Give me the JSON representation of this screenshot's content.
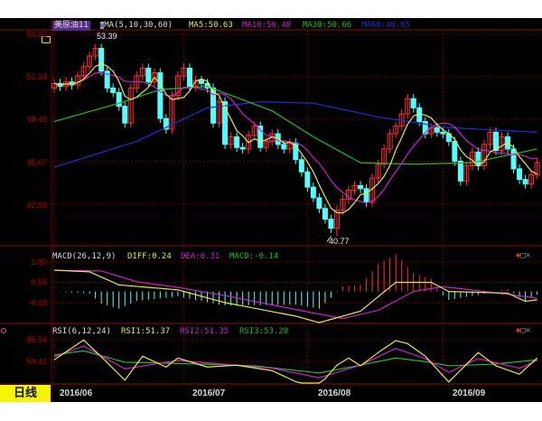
{
  "header": {
    "symbol": "美原油11",
    "ma_params": "MA(5,10,30,60)",
    "ma5": "MA5:50.63",
    "ma10": "MA10:50.48",
    "ma30": "MA30:50.66",
    "ma60": "MA60:48.85"
  },
  "macd_header": {
    "params": "MACD(26,12,9)",
    "diff": "DIFF:0.24",
    "dea": "DEA:0.31",
    "macd": "MACD:-0.14"
  },
  "rsi_header": {
    "params": "RSI(6,12,24)",
    "rsi1": "RSI1:51.37",
    "rsi2": "RSI2:51.35",
    "rsi3": "RSI3:53.20"
  },
  "period_label": "日线",
  "colors": {
    "up": "#ff3030",
    "down": "#54ffff",
    "ma5": "#e8e84a",
    "ma10": "#d020d0",
    "ma30": "#20c020",
    "ma60": "#2030d0",
    "axis": "#c00000",
    "grid": "#700000"
  },
  "chart_data": [
    {
      "type": "candlestick",
      "pane": "price",
      "y_ticks": [
        "54.02",
        "51.24",
        "48.46",
        "45.67",
        "42.89"
      ],
      "ylim": [
        40.5,
        54.3
      ],
      "x_ticks": [
        "2016/06",
        "2016/07",
        "2016/08",
        "2016/09"
      ],
      "x_tick_index": [
        0,
        22,
        43,
        66
      ],
      "annotations": {
        "high": "53.39",
        "low": "40.77"
      },
      "open": [
        50.5,
        50.8,
        50.6,
        50.9,
        50.7,
        51.3,
        51.9,
        52.6,
        53.1,
        51.6,
        50.5,
        50.2,
        49.3,
        48.2,
        50.5,
        51.3,
        51.8,
        50.9,
        51.5,
        48.5,
        47.8,
        50.0,
        51.3,
        51.8,
        50.6,
        51.0,
        50.8,
        50.5,
        48.2,
        49.6,
        46.8,
        47.3,
        46.6,
        46.5,
        47.4,
        48.0,
        46.6,
        47.0,
        47.5,
        46.8,
        46.5,
        46.9,
        45.8,
        45.0,
        44.0,
        43.3,
        42.6,
        41.9,
        41.3,
        42.5,
        43.2,
        43.8,
        44.1,
        43.9,
        43.0,
        44.6,
        45.5,
        46.5,
        47.5,
        48.0,
        48.8,
        49.8,
        49.2,
        48.3,
        47.5,
        47.9,
        47.6,
        47.5,
        47.0,
        45.7,
        44.4,
        45.4,
        46.3,
        45.4,
        46.8,
        47.6,
        46.4,
        47.3,
        46.5,
        45.2,
        44.5,
        44.2,
        44.8
      ],
      "high": [
        51.1,
        51.1,
        51.2,
        51.2,
        51.6,
        52.2,
        52.9,
        53.39,
        53.4,
        51.9,
        50.8,
        50.5,
        49.6,
        50.8,
        51.6,
        52.1,
        52.1,
        51.8,
        51.8,
        48.8,
        50.3,
        51.6,
        52.1,
        52.1,
        51.3,
        51.3,
        51.1,
        50.8,
        49.9,
        49.9,
        47.6,
        47.6,
        46.9,
        47.7,
        48.3,
        48.3,
        47.3,
        47.8,
        47.8,
        47.1,
        47.2,
        47.2,
        46.1,
        45.3,
        44.3,
        43.6,
        42.9,
        42.2,
        42.8,
        43.5,
        44.1,
        44.4,
        44.4,
        44.2,
        44.9,
        45.8,
        46.8,
        47.8,
        48.3,
        49.1,
        50.1,
        50.1,
        49.5,
        48.6,
        48.2,
        48.2,
        47.9,
        47.8,
        47.3,
        46.0,
        45.7,
        46.6,
        46.6,
        47.1,
        47.9,
        47.9,
        47.6,
        47.6,
        46.8,
        45.5,
        44.8,
        45.1,
        45.9
      ],
      "low": [
        50.2,
        50.3,
        50.3,
        50.4,
        50.4,
        51.0,
        51.6,
        52.3,
        51.3,
        50.2,
        49.9,
        49.0,
        47.9,
        47.9,
        50.2,
        51.0,
        50.6,
        50.6,
        48.2,
        47.5,
        47.5,
        49.7,
        51.0,
        50.3,
        50.3,
        50.5,
        50.2,
        47.9,
        47.9,
        46.5,
        46.5,
        46.3,
        46.2,
        46.2,
        47.1,
        46.3,
        46.3,
        46.7,
        46.5,
        46.2,
        46.2,
        45.5,
        44.7,
        43.7,
        43.0,
        42.3,
        41.6,
        41.0,
        40.77,
        42.2,
        42.9,
        43.5,
        43.6,
        42.7,
        42.7,
        44.3,
        45.2,
        46.2,
        47.2,
        47.7,
        48.5,
        48.9,
        48.0,
        47.2,
        47.2,
        47.3,
        47.2,
        46.7,
        45.4,
        44.1,
        44.1,
        45.1,
        45.1,
        45.1,
        46.5,
        46.1,
        46.1,
        46.2,
        44.9,
        44.2,
        43.9,
        43.9,
        44.5
      ],
      "close": [
        50.8,
        50.6,
        50.9,
        50.7,
        51.3,
        51.9,
        52.6,
        53.1,
        51.6,
        50.5,
        50.2,
        49.3,
        48.2,
        50.5,
        51.3,
        51.8,
        50.9,
        51.5,
        48.5,
        47.8,
        50.0,
        51.3,
        51.8,
        50.6,
        51.0,
        50.8,
        50.5,
        48.2,
        49.6,
        46.8,
        47.3,
        46.6,
        46.5,
        47.4,
        48.0,
        46.6,
        47.0,
        47.5,
        46.8,
        46.5,
        46.9,
        45.8,
        45.0,
        44.0,
        43.3,
        42.6,
        41.9,
        41.3,
        42.5,
        43.2,
        43.8,
        44.1,
        43.9,
        43.0,
        44.6,
        45.5,
        46.5,
        47.5,
        48.0,
        48.8,
        49.8,
        49.2,
        48.3,
        47.5,
        47.9,
        47.6,
        47.5,
        47.0,
        45.7,
        44.4,
        45.4,
        46.3,
        45.4,
        46.8,
        47.6,
        46.4,
        47.3,
        46.5,
        45.2,
        44.5,
        44.2,
        44.8,
        45.6
      ],
      "ma30_points": [
        [
          0,
          48.3
        ],
        [
          11,
          49.5
        ],
        [
          18,
          50.4
        ],
        [
          26,
          50.6
        ],
        [
          37,
          49.0
        ],
        [
          44,
          47.3
        ],
        [
          52,
          45.6
        ],
        [
          61,
          45.5
        ],
        [
          71,
          45.6
        ],
        [
          82,
          46.5
        ]
      ],
      "ma60_points": [
        [
          0,
          45.3
        ],
        [
          14,
          47.0
        ],
        [
          26,
          49.2
        ],
        [
          35,
          49.6
        ],
        [
          44,
          49.5
        ],
        [
          55,
          48.6
        ],
        [
          67,
          47.9
        ],
        [
          82,
          47.6
        ]
      ]
    },
    {
      "type": "line",
      "pane": "macd",
      "y_ticks": [
        "1.80",
        "0.56",
        "-0.68"
      ],
      "ylim": [
        -2.1,
        2.3
      ],
      "series": [
        {
          "name": "DIFF",
          "points": [
            [
              0,
              1.3
            ],
            [
              6,
              1.2
            ],
            [
              11,
              0.4
            ],
            [
              21,
              0.1
            ],
            [
              29,
              -0.68
            ],
            [
              41,
              -1.5
            ],
            [
              45,
              -1.9
            ],
            [
              52,
              -1.2
            ],
            [
              58,
              0.56
            ],
            [
              64,
              0.56
            ],
            [
              67,
              0.0
            ],
            [
              77,
              -0.1
            ],
            [
              80,
              -0.6
            ],
            [
              82,
              -0.5
            ]
          ]
        },
        {
          "name": "DEA",
          "points": [
            [
              0,
              1.3
            ],
            [
              8,
              1.25
            ],
            [
              14,
              0.6
            ],
            [
              21,
              0.25
            ],
            [
              29,
              -0.25
            ],
            [
              41,
              -1.1
            ],
            [
              49,
              -1.65
            ],
            [
              55,
              -1.15
            ],
            [
              61,
              0.0
            ],
            [
              66,
              0.3
            ],
            [
              72,
              0.05
            ],
            [
              82,
              -0.4
            ]
          ]
        }
      ]
    },
    {
      "type": "line",
      "pane": "rsi",
      "y_ticks": [
        "86.54",
        "50.41"
      ],
      "ylim": [
        0,
        110
      ],
      "series": [
        {
          "name": "RSI1",
          "points": [
            [
              0,
              53
            ],
            [
              5,
              86
            ],
            [
              8,
              58
            ],
            [
              12,
              19
            ],
            [
              15,
              59
            ],
            [
              17,
              50
            ],
            [
              19,
              41
            ],
            [
              21,
              56
            ],
            [
              26,
              41
            ],
            [
              31,
              44
            ],
            [
              37,
              35
            ],
            [
              42,
              12
            ],
            [
              45,
              10
            ],
            [
              48,
              44
            ],
            [
              50,
              56
            ],
            [
              52,
              43
            ],
            [
              55,
              65
            ],
            [
              58,
              85
            ],
            [
              60,
              80
            ],
            [
              63,
              59
            ],
            [
              67,
              16
            ],
            [
              72,
              65
            ],
            [
              75,
              43
            ],
            [
              79,
              29
            ],
            [
              82,
              56
            ]
          ]
        },
        {
          "name": "RSI2",
          "points": [
            [
              0,
              58
            ],
            [
              5,
              76
            ],
            [
              12,
              38
            ],
            [
              21,
              52
            ],
            [
              37,
              39
            ],
            [
              45,
              23
            ],
            [
              52,
              44
            ],
            [
              58,
              72
            ],
            [
              63,
              55
            ],
            [
              67,
              32
            ],
            [
              72,
              55
            ],
            [
              79,
              39
            ],
            [
              82,
              52
            ]
          ]
        },
        {
          "name": "RSI3",
          "points": [
            [
              0,
              61
            ],
            [
              5,
              68
            ],
            [
              12,
              49
            ],
            [
              21,
              47
            ],
            [
              34,
              43
            ],
            [
              45,
              31
            ],
            [
              52,
              44
            ],
            [
              58,
              56
            ],
            [
              63,
              50
            ],
            [
              67,
              43
            ],
            [
              75,
              46
            ],
            [
              82,
              53
            ]
          ]
        }
      ]
    }
  ]
}
